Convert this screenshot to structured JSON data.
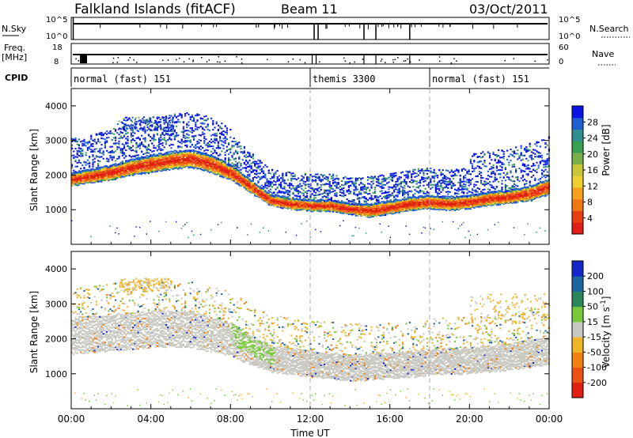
{
  "header": {
    "station": "Falkland Islands (fitACF)",
    "beam": "Beam 11",
    "date": "03/Oct/2011"
  },
  "strip_labels": {
    "nsky": "N.Sky",
    "nsearch": "N.Search",
    "freq": "Freq.",
    "freq_unit": "[MHz]",
    "nave": "Nave",
    "cpid": "CPID"
  },
  "strip_ticks": {
    "nsky_left": [
      "10^5",
      "10^0"
    ],
    "nsearch_right": [
      "10^5",
      "10^0"
    ],
    "freq_left": [
      "18",
      "8"
    ],
    "nave_right": [
      "60",
      "0"
    ]
  },
  "cpid_segments": [
    {
      "label": "normal (fast) 151",
      "start_h": 0
    },
    {
      "label": "themis 3300",
      "start_h": 12
    },
    {
      "label": "normal (fast) 151",
      "start_h": 18
    }
  ],
  "chart_data": [
    {
      "type": "heatmap",
      "ylabel": "Slant Range [km]",
      "yticks": [
        1000,
        2000,
        3000,
        4000
      ],
      "ylim": [
        0,
        4500
      ],
      "xlim_hours": [
        0,
        24
      ],
      "colorbar": {
        "label": "Power [dB]",
        "ticks": [
          "4",
          "8",
          "12",
          "16",
          "20",
          "24",
          "28"
        ],
        "colors": [
          "#0a14e6",
          "#1f5fd0",
          "#2f8f8f",
          "#3aa050",
          "#7ab04a",
          "#c8c83a",
          "#f0d030",
          "#f5a01e",
          "#f07814",
          "#e84014",
          "#e01e14"
        ]
      }
    },
    {
      "type": "heatmap",
      "ylabel": "Slant Range [km]",
      "yticks": [
        1000,
        2000,
        3000,
        4000
      ],
      "ylim": [
        0,
        4500
      ],
      "xlim_hours": [
        0,
        24
      ],
      "colorbar": {
        "label": "Velocity [m s^-1]",
        "ticks": [
          "200",
          "100",
          "50",
          "15",
          "-15",
          "-50",
          "-100",
          "-200"
        ],
        "colors": [
          "#1428c8",
          "#1e64a0",
          "#28865a",
          "#78c83c",
          "#c8c8c0",
          "#f0b428",
          "#f08214",
          "#eb5014",
          "#e01e14"
        ]
      }
    }
  ],
  "xaxis": {
    "ticks": [
      "00:00",
      "04:00",
      "08:00",
      "12:00",
      "16:00",
      "20:00",
      "00:00"
    ],
    "label": "Time UT"
  },
  "power_band": [
    [
      0,
      1900,
      300
    ],
    [
      1,
      2000,
      300
    ],
    [
      2,
      2100,
      350
    ],
    [
      3,
      2250,
      350
    ],
    [
      4,
      2350,
      400
    ],
    [
      5,
      2450,
      400
    ],
    [
      6,
      2500,
      400
    ],
    [
      7,
      2350,
      400
    ],
    [
      8,
      2100,
      350
    ],
    [
      9,
      1700,
      300
    ],
    [
      10,
      1300,
      250
    ],
    [
      11,
      1200,
      250
    ],
    [
      12,
      1150,
      250
    ],
    [
      13,
      1150,
      250
    ],
    [
      14,
      1050,
      250
    ],
    [
      15,
      1000,
      300
    ],
    [
      16,
      1100,
      300
    ],
    [
      17,
      1200,
      300
    ],
    [
      18,
      1250,
      300
    ],
    [
      19,
      1200,
      300
    ],
    [
      20,
      1250,
      300
    ],
    [
      21,
      1350,
      300
    ],
    [
      22,
      1400,
      300
    ],
    [
      23,
      1500,
      350
    ],
    [
      24,
      1700,
      350
    ]
  ],
  "velocity_band": [
    [
      0,
      2100,
      500
    ],
    [
      2,
      2200,
      500
    ],
    [
      4,
      2300,
      500
    ],
    [
      6,
      2300,
      500
    ],
    [
      8,
      2000,
      450
    ],
    [
      9,
      1700,
      400
    ],
    [
      10,
      1450,
      350
    ],
    [
      12,
      1300,
      350
    ],
    [
      14,
      1200,
      350
    ],
    [
      16,
      1250,
      350
    ],
    [
      18,
      1350,
      350
    ],
    [
      20,
      1400,
      350
    ],
    [
      22,
      1500,
      350
    ],
    [
      24,
      1700,
      400
    ]
  ]
}
